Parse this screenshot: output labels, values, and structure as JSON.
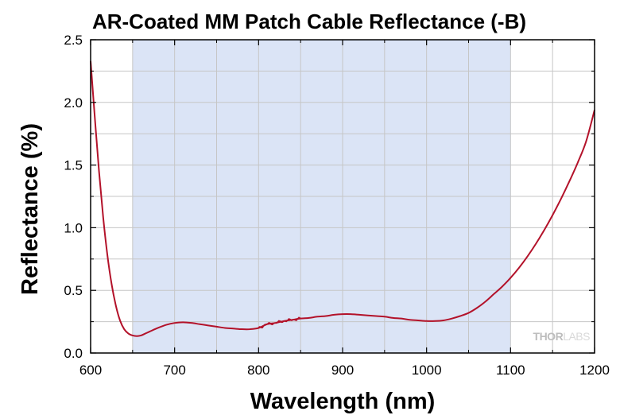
{
  "chart_data": {
    "type": "line",
    "title": "AR-Coated MM Patch Cable Reflectance (-B)",
    "xlabel": "Wavelength (nm)",
    "ylabel": "Reflectance (%)",
    "xlim": [
      600,
      1200
    ],
    "ylim": [
      0,
      2.5
    ],
    "xticks": [
      "600",
      "700",
      "800",
      "900",
      "1000",
      "1100",
      "1200"
    ],
    "yticks": [
      "0.0",
      "0.5",
      "1.0",
      "1.5",
      "2.0",
      "2.5"
    ],
    "grid": true,
    "highlight_band": [
      650,
      1100
    ],
    "series": [
      {
        "color": "#b3122a",
        "x": [
          600,
          605,
          610,
          615,
          620,
          625,
          630,
          635,
          640,
          645,
          650,
          655,
          660,
          665,
          670,
          680,
          690,
          700,
          710,
          720,
          730,
          740,
          750,
          760,
          770,
          780,
          790,
          800,
          810,
          820,
          830,
          840,
          850,
          860,
          870,
          880,
          890,
          900,
          910,
          920,
          930,
          940,
          950,
          960,
          970,
          980,
          990,
          1000,
          1010,
          1020,
          1030,
          1040,
          1050,
          1060,
          1070,
          1080,
          1090,
          1100,
          1110,
          1120,
          1130,
          1140,
          1150,
          1160,
          1170,
          1180,
          1190,
          1200
        ],
        "y": [
          2.33,
          1.88,
          1.45,
          1.08,
          0.78,
          0.55,
          0.38,
          0.26,
          0.19,
          0.155,
          0.14,
          0.135,
          0.14,
          0.155,
          0.17,
          0.2,
          0.225,
          0.24,
          0.245,
          0.24,
          0.23,
          0.22,
          0.21,
          0.2,
          0.195,
          0.19,
          0.19,
          0.2,
          0.23,
          0.24,
          0.255,
          0.265,
          0.275,
          0.28,
          0.29,
          0.295,
          0.305,
          0.31,
          0.31,
          0.305,
          0.3,
          0.295,
          0.29,
          0.28,
          0.275,
          0.265,
          0.26,
          0.255,
          0.255,
          0.26,
          0.275,
          0.295,
          0.32,
          0.36,
          0.41,
          0.47,
          0.53,
          0.6,
          0.68,
          0.77,
          0.87,
          0.98,
          1.1,
          1.23,
          1.37,
          1.52,
          1.69,
          1.94
        ]
      }
    ]
  },
  "watermark": {
    "part1": "THOR",
    "part2": "LABS"
  }
}
